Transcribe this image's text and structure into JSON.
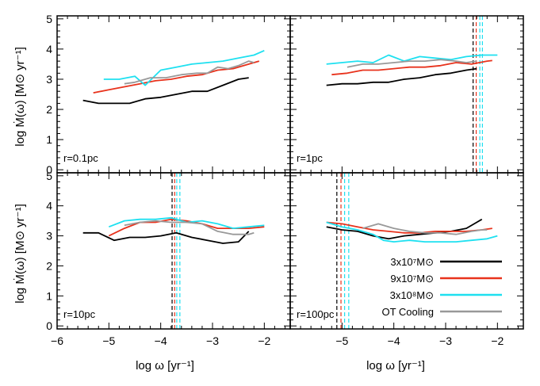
{
  "chart_data": {
    "type": "line",
    "layout": "2x2 panels, shared axes",
    "xlabel": "log ω [yr⁻¹]",
    "ylabel": "log Ṁ(ω) [M⊙ yr⁻¹]",
    "xlim": [
      -6,
      -1.5
    ],
    "ylim": [
      -0.1,
      5.1
    ],
    "x_ticks": [
      -6,
      -5,
      -4,
      -3,
      -2
    ],
    "y_ticks": [
      0,
      1,
      2,
      3,
      4,
      5
    ],
    "grid": false,
    "legend": {
      "placement": "bottom-right panel, lower right",
      "entries": [
        {
          "label": "3x10⁷M⊙",
          "color": "#000000"
        },
        {
          "label": "9x10⁷M⊙",
          "color": "#e8321c"
        },
        {
          "label": "3x10⁸M⊙",
          "color": "#1ee0f0"
        },
        {
          "label": "OT Cooling",
          "color": "#999999"
        }
      ]
    },
    "panels": [
      {
        "label": "r=0.1pc",
        "vlines": [],
        "series": [
          {
            "name": "3x10⁷M⊙",
            "color": "#000000",
            "x": [
              -5.5,
              -5.2,
              -4.9,
              -4.6,
              -4.3,
              -4.0,
              -3.7,
              -3.4,
              -3.1,
              -2.8,
              -2.5,
              -2.3
            ],
            "y": [
              2.3,
              2.2,
              2.2,
              2.2,
              2.35,
              2.4,
              2.5,
              2.6,
              2.6,
              2.8,
              3.0,
              3.05
            ]
          },
          {
            "name": "9x10⁷M⊙",
            "color": "#e8321c",
            "x": [
              -5.3,
              -5.0,
              -4.7,
              -4.4,
              -4.1,
              -3.8,
              -3.5,
              -3.2,
              -2.9,
              -2.6,
              -2.3,
              -2.1
            ],
            "y": [
              2.55,
              2.65,
              2.75,
              2.85,
              2.95,
              3.0,
              3.1,
              3.15,
              3.3,
              3.35,
              3.5,
              3.6
            ]
          },
          {
            "name": "3x10⁸M⊙",
            "color": "#1ee0f0",
            "x": [
              -5.1,
              -4.8,
              -4.5,
              -4.3,
              -4.0,
              -3.7,
              -3.4,
              -3.1,
              -2.8,
              -2.5,
              -2.2,
              -2.0
            ],
            "y": [
              3.0,
              3.0,
              3.1,
              2.8,
              3.3,
              3.4,
              3.5,
              3.55,
              3.6,
              3.7,
              3.8,
              3.95
            ]
          },
          {
            "name": "OT Cooling",
            "color": "#999999",
            "x": [
              -4.7,
              -4.5,
              -4.2,
              -3.9,
              -3.6,
              -3.3,
              -3.1,
              -2.9,
              -2.7,
              -2.5,
              -2.3,
              -2.2
            ],
            "y": [
              2.85,
              2.9,
              3.05,
              3.05,
              3.15,
              3.2,
              3.2,
              3.4,
              3.35,
              3.45,
              3.6,
              3.55
            ]
          }
        ]
      },
      {
        "label": "r=1pc",
        "vlines": [
          {
            "x": -2.47,
            "color": "#000000"
          },
          {
            "x": -2.41,
            "color": "#e8321c"
          },
          {
            "x": -2.34,
            "color": "#1ee0f0"
          },
          {
            "x": -2.29,
            "color": "#1ee0f0"
          }
        ],
        "series": [
          {
            "name": "3x10⁷M⊙",
            "color": "#000000",
            "x": [
              -5.3,
              -5.0,
              -4.7,
              -4.4,
              -4.1,
              -3.8,
              -3.5,
              -3.2,
              -2.9,
              -2.6,
              -2.4
            ],
            "y": [
              2.8,
              2.85,
              2.85,
              2.9,
              2.9,
              3.0,
              3.05,
              3.15,
              3.2,
              3.3,
              3.35
            ]
          },
          {
            "name": "9x10⁷M⊙",
            "color": "#e8321c",
            "x": [
              -5.2,
              -4.9,
              -4.6,
              -4.3,
              -4.0,
              -3.7,
              -3.4,
              -3.1,
              -2.8,
              -2.5,
              -2.2,
              -2.1
            ],
            "y": [
              3.15,
              3.2,
              3.3,
              3.3,
              3.35,
              3.4,
              3.4,
              3.45,
              3.55,
              3.5,
              3.6,
              3.62
            ]
          },
          {
            "name": "3x10⁸M⊙",
            "color": "#1ee0f0",
            "x": [
              -5.3,
              -5.0,
              -4.7,
              -4.4,
              -4.1,
              -3.8,
              -3.5,
              -3.2,
              -2.9,
              -2.6,
              -2.3,
              -2.0
            ],
            "y": [
              3.5,
              3.55,
              3.6,
              3.55,
              3.8,
              3.6,
              3.75,
              3.7,
              3.65,
              3.75,
              3.8,
              3.8
            ]
          },
          {
            "name": "OT Cooling",
            "color": "#999999",
            "x": [
              -4.9,
              -4.6,
              -4.3,
              -4.0,
              -3.7,
              -3.4,
              -3.1,
              -2.8,
              -2.6,
              -2.4
            ],
            "y": [
              3.4,
              3.5,
              3.5,
              3.55,
              3.6,
              3.6,
              3.65,
              3.6,
              3.55,
              3.6
            ]
          }
        ]
      },
      {
        "label": "r=10pc",
        "vlines": [
          {
            "x": -3.78,
            "color": "#000000"
          },
          {
            "x": -3.73,
            "color": "#e8321c"
          },
          {
            "x": -3.69,
            "color": "#1ee0f0"
          },
          {
            "x": -3.63,
            "color": "#1ee0f0"
          }
        ],
        "series": [
          {
            "name": "3x10⁷M⊙",
            "color": "#000000",
            "x": [
              -5.5,
              -5.2,
              -4.9,
              -4.6,
              -4.3,
              -4.0,
              -3.7,
              -3.4,
              -3.1,
              -2.8,
              -2.5,
              -2.3
            ],
            "y": [
              3.1,
              3.1,
              2.85,
              2.95,
              2.95,
              3.0,
              3.1,
              2.95,
              2.85,
              2.75,
              2.8,
              3.15
            ]
          },
          {
            "name": "9x10⁷M⊙",
            "color": "#e8321c",
            "x": [
              -5.0,
              -4.7,
              -4.4,
              -4.1,
              -3.8,
              -3.5,
              -3.2,
              -2.9,
              -2.6,
              -2.3,
              -2.0
            ],
            "y": [
              3.0,
              3.25,
              3.45,
              3.45,
              3.55,
              3.5,
              3.4,
              3.25,
              3.25,
              3.25,
              3.3
            ]
          },
          {
            "name": "3x10⁸M⊙",
            "color": "#1ee0f0",
            "x": [
              -5.0,
              -4.7,
              -4.4,
              -4.1,
              -3.8,
              -3.5,
              -3.2,
              -2.9,
              -2.6,
              -2.3,
              -2.0
            ],
            "y": [
              3.3,
              3.5,
              3.55,
              3.55,
              3.6,
              3.45,
              3.5,
              3.4,
              3.25,
              3.3,
              3.35
            ]
          },
          {
            "name": "OT Cooling",
            "color": "#999999",
            "x": [
              -4.7,
              -4.4,
              -4.1,
              -3.8,
              -3.5,
              -3.2,
              -2.9,
              -2.6,
              -2.3,
              -2.2
            ],
            "y": [
              3.35,
              3.45,
              3.5,
              3.45,
              3.45,
              3.4,
              3.15,
              3.05,
              3.05,
              3.1
            ]
          }
        ]
      },
      {
        "label": "r=100pc",
        "vlines": [
          {
            "x": -5.1,
            "color": "#000000"
          },
          {
            "x": -5.02,
            "color": "#e8321c"
          },
          {
            "x": -4.95,
            "color": "#1ee0f0"
          },
          {
            "x": -4.87,
            "color": "#1ee0f0"
          }
        ],
        "series": [
          {
            "name": "3x10⁷M⊙",
            "color": "#000000",
            "x": [
              -5.3,
              -5.0,
              -4.7,
              -4.4,
              -4.1,
              -3.8,
              -3.5,
              -3.2,
              -2.9,
              -2.6,
              -2.4,
              -2.3
            ],
            "y": [
              3.3,
              3.2,
              3.15,
              3.0,
              2.9,
              3.0,
              3.05,
              3.1,
              3.15,
              3.25,
              3.45,
              3.55
            ]
          },
          {
            "name": "9x10⁷M⊙",
            "color": "#e8321c",
            "x": [
              -5.3,
              -5.0,
              -4.7,
              -4.4,
              -4.1,
              -3.8,
              -3.5,
              -3.2,
              -2.9,
              -2.6,
              -2.3,
              -2.1
            ],
            "y": [
              3.45,
              3.4,
              3.3,
              3.2,
              3.15,
              3.1,
              3.1,
              3.15,
              3.15,
              3.15,
              3.2,
              3.25
            ]
          },
          {
            "name": "3x10⁸M⊙",
            "color": "#1ee0f0",
            "x": [
              -5.3,
              -5.0,
              -4.7,
              -4.4,
              -4.2,
              -4.0,
              -3.7,
              -3.4,
              -3.1,
              -2.8,
              -2.5,
              -2.2,
              -2.0
            ],
            "y": [
              3.45,
              3.3,
              3.2,
              3.05,
              2.85,
              2.8,
              2.85,
              2.8,
              2.8,
              2.8,
              2.85,
              2.9,
              3.0
            ]
          },
          {
            "name": "OT Cooling",
            "color": "#999999",
            "x": [
              -4.6,
              -4.3,
              -4.0,
              -3.7,
              -3.4,
              -3.1,
              -2.8,
              -2.5,
              -2.3,
              -2.2
            ],
            "y": [
              3.25,
              3.4,
              3.25,
              3.15,
              3.1,
              3.1,
              3.05,
              3.15,
              3.2,
              3.2
            ]
          }
        ]
      }
    ]
  }
}
